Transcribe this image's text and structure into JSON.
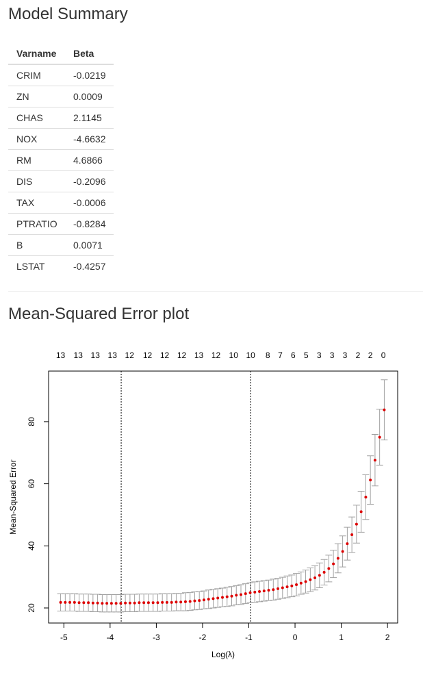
{
  "summary_title": "Model Summary",
  "table": {
    "columns": [
      "Varname",
      "Beta"
    ],
    "rows": [
      [
        "CRIM",
        "-0.0219"
      ],
      [
        "ZN",
        "0.0009"
      ],
      [
        "CHAS",
        "2.1145"
      ],
      [
        "NOX",
        "-4.6632"
      ],
      [
        "RM",
        "4.6866"
      ],
      [
        "DIS",
        "-0.2096"
      ],
      [
        "TAX",
        "-0.0006"
      ],
      [
        "PTRATIO",
        "-0.8284"
      ],
      [
        "B",
        "0.0071"
      ],
      [
        "LSTAT",
        "-0.4257"
      ]
    ]
  },
  "plot_title": "Mean-Squared Error plot",
  "chart_data": {
    "type": "errorbar",
    "xlabel": "Log(λ)",
    "ylabel": "Mean-Squared Error",
    "x": [
      -5.07,
      -4.97,
      -4.87,
      -4.77,
      -4.67,
      -4.57,
      -4.47,
      -4.37,
      -4.27,
      -4.17,
      -4.07,
      -3.97,
      -3.87,
      -3.77,
      -3.67,
      -3.57,
      -3.47,
      -3.37,
      -3.27,
      -3.17,
      -3.07,
      -2.97,
      -2.87,
      -2.77,
      -2.67,
      -2.57,
      -2.47,
      -2.37,
      -2.27,
      -2.17,
      -2.07,
      -1.97,
      -1.87,
      -1.77,
      -1.67,
      -1.57,
      -1.47,
      -1.37,
      -1.27,
      -1.17,
      -1.07,
      -0.97,
      -0.87,
      -0.77,
      -0.67,
      -0.57,
      -0.47,
      -0.37,
      -0.27,
      -0.17,
      -0.07,
      0.03,
      0.13,
      0.23,
      0.33,
      0.43,
      0.53,
      0.63,
      0.73,
      0.83,
      0.93,
      1.03,
      1.13,
      1.23,
      1.33,
      1.43,
      1.53,
      1.63,
      1.73,
      1.83,
      1.93
    ],
    "series": [
      {
        "color": "#dd0000",
        "error_color": "#a0a0a0",
        "values": [
          21.8,
          21.8,
          21.8,
          21.8,
          21.7,
          21.7,
          21.7,
          21.6,
          21.6,
          21.5,
          21.5,
          21.5,
          21.5,
          21.5,
          21.6,
          21.6,
          21.6,
          21.7,
          21.7,
          21.7,
          21.7,
          21.7,
          21.8,
          21.8,
          21.8,
          21.9,
          21.9,
          22.0,
          22.1,
          22.3,
          22.4,
          22.6,
          22.8,
          23.0,
          23.2,
          23.4,
          23.6,
          23.8,
          24.1,
          24.3,
          24.6,
          24.9,
          25.1,
          25.3,
          25.5,
          25.7,
          25.9,
          26.2,
          26.5,
          26.8,
          27.1,
          27.5,
          28.0,
          28.5,
          29.1,
          29.7,
          30.5,
          31.5,
          32.7,
          34.2,
          36.0,
          38.2,
          40.7,
          43.6,
          47.0,
          51.0,
          55.7,
          61.2,
          67.6,
          75.0,
          83.8
        ],
        "errors": [
          2.8,
          2.8,
          2.8,
          2.8,
          2.8,
          2.8,
          2.8,
          2.8,
          2.8,
          2.8,
          2.8,
          2.8,
          2.8,
          2.8,
          2.8,
          2.8,
          2.8,
          2.8,
          2.8,
          2.8,
          2.8,
          2.8,
          2.8,
          2.8,
          2.8,
          2.8,
          2.8,
          2.9,
          2.9,
          2.9,
          2.9,
          2.9,
          3.0,
          3.0,
          3.0,
          3.0,
          3.1,
          3.1,
          3.1,
          3.2,
          3.2,
          3.2,
          3.3,
          3.3,
          3.3,
          3.3,
          3.4,
          3.4,
          3.4,
          3.5,
          3.5,
          3.6,
          3.6,
          3.7,
          3.8,
          3.9,
          4.0,
          4.1,
          4.3,
          4.4,
          4.7,
          5.0,
          5.3,
          5.7,
          6.1,
          6.6,
          7.2,
          7.8,
          8.3,
          9.0,
          9.7
        ]
      }
    ],
    "xlim": [
      -5.33,
      2.22
    ],
    "ylim": [
      15.15,
      96.3
    ],
    "xticks": [
      -5,
      -4,
      -3,
      -2,
      -1,
      0,
      1,
      2
    ],
    "yticks": [
      20,
      40,
      60,
      80
    ],
    "x2ticks": [
      {
        "value": -5.07,
        "label": "13"
      },
      {
        "value": -4.69,
        "label": "13"
      },
      {
        "value": -4.32,
        "label": "13"
      },
      {
        "value": -3.95,
        "label": "13"
      },
      {
        "value": -3.58,
        "label": "12"
      },
      {
        "value": -3.19,
        "label": "12"
      },
      {
        "value": -2.82,
        "label": "12"
      },
      {
        "value": -2.45,
        "label": "12"
      },
      {
        "value": -2.08,
        "label": "13"
      },
      {
        "value": -1.71,
        "label": "12"
      },
      {
        "value": -1.33,
        "label": "10"
      },
      {
        "value": -0.96,
        "label": "10"
      },
      {
        "value": -0.59,
        "label": "8"
      },
      {
        "value": -0.32,
        "label": "7"
      },
      {
        "value": -0.04,
        "label": "6"
      },
      {
        "value": 0.24,
        "label": "5"
      },
      {
        "value": 0.52,
        "label": "3"
      },
      {
        "value": 0.8,
        "label": "3"
      },
      {
        "value": 1.08,
        "label": "3"
      },
      {
        "value": 1.36,
        "label": "2"
      },
      {
        "value": 1.63,
        "label": "2"
      },
      {
        "value": 1.91,
        "label": "0"
      }
    ],
    "vlines": [
      -3.76,
      -0.96
    ]
  }
}
